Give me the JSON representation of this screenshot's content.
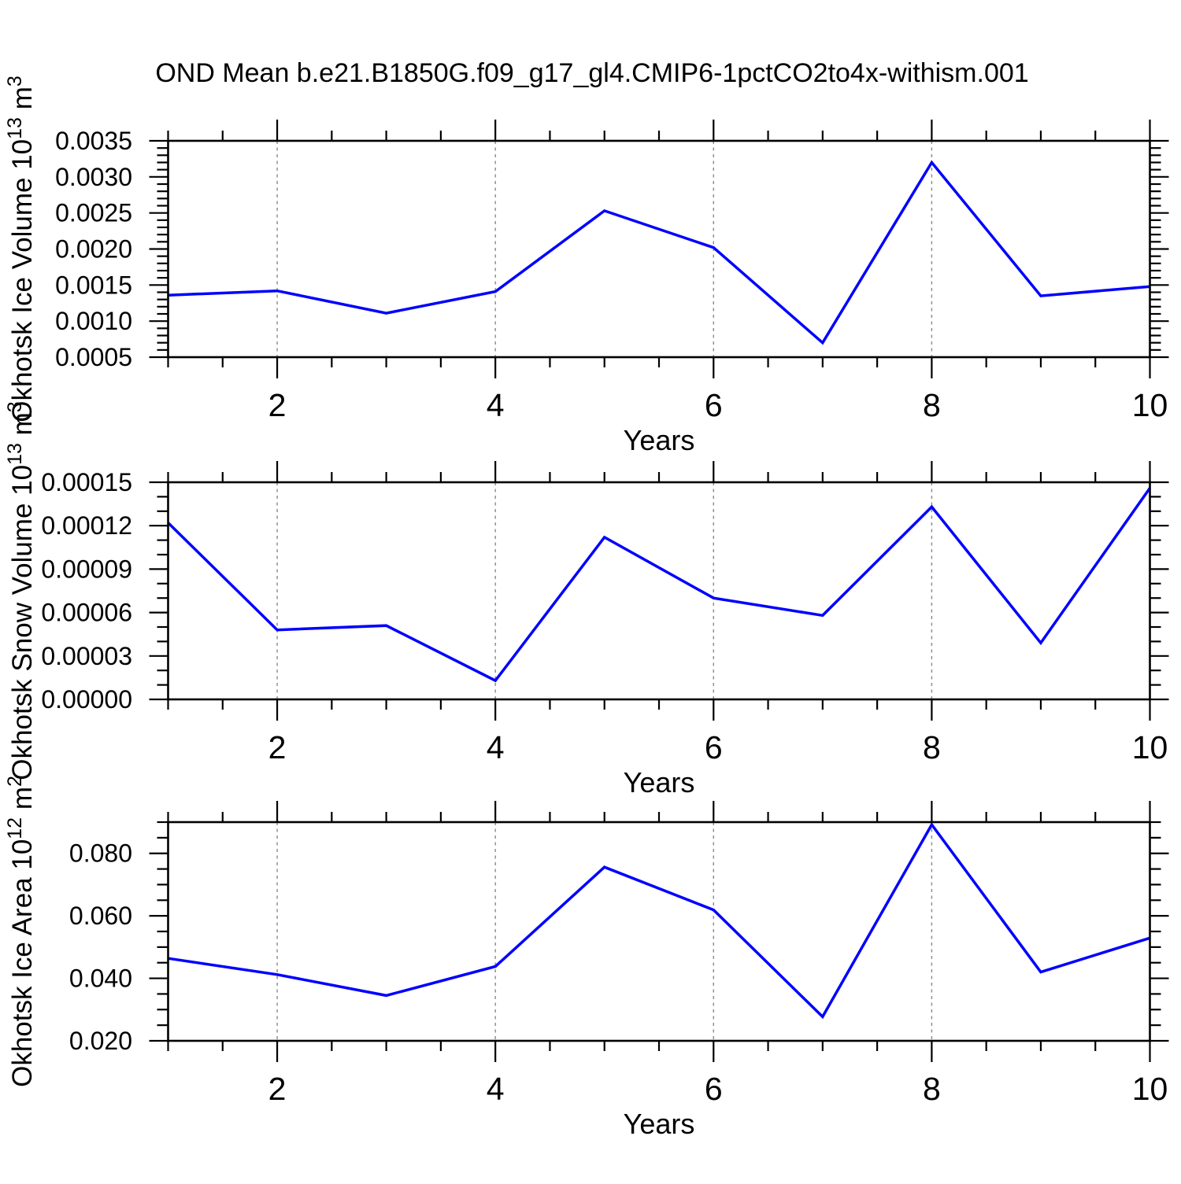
{
  "figure_title": "OND Mean b.e21.B1850G.f09_g17_gl4.CMIP6-1pctCO2to4x-withism.001",
  "colors": {
    "line": "#0000ff",
    "frame": "#000000",
    "grid": "#8a8a8a",
    "text": "#000000"
  },
  "chart_data": [
    {
      "type": "line",
      "ylabel": "Okhotsk Ice Volume 10^13 m^3",
      "ylabel_parts": [
        {
          "t": "Okhotsk Ice Volume 10"
        },
        {
          "t": "13",
          "sup": true
        },
        {
          "t": " m"
        },
        {
          "t": "3",
          "sup": true
        }
      ],
      "xlabel": "Years",
      "x": [
        1,
        2,
        3,
        4,
        5,
        6,
        7,
        8,
        9,
        10
      ],
      "values": [
        0.00136,
        0.00142,
        0.00111,
        0.00141,
        0.00253,
        0.00202,
        0.0007,
        0.0032,
        0.00135,
        0.00148
      ],
      "ylim": [
        0.0005,
        0.0035
      ],
      "ytick_major_step": 0.0005,
      "ytick_minor_step": 0.0001,
      "ytick_decimals": 4,
      "xlim": [
        1,
        10
      ],
      "xtick_major_step": 2,
      "xtick_minor_step": 0.5,
      "grid_x": [
        2,
        4,
        6,
        8
      ],
      "grid": true,
      "legend": null
    },
    {
      "type": "line",
      "ylabel": "Okhotsk Snow Volume 10^13 m^3",
      "ylabel_parts": [
        {
          "t": "Okhotsk Snow Volume 10"
        },
        {
          "t": "13",
          "sup": true
        },
        {
          "t": " m"
        },
        {
          "t": "3",
          "sup": true
        }
      ],
      "xlabel": "Years",
      "x": [
        1,
        2,
        3,
        4,
        5,
        6,
        7,
        8,
        9,
        10
      ],
      "values": [
        0.000122,
        4.8e-05,
        5.1e-05,
        1.3e-05,
        0.000112,
        7e-05,
        5.8e-05,
        0.000133,
        3.9e-05,
        0.000146
      ],
      "ylim": [
        0.0,
        0.00015
      ],
      "ytick_major_step": 3e-05,
      "ytick_minor_step": 1e-05,
      "ytick_decimals": 5,
      "xlim": [
        1,
        10
      ],
      "xtick_major_step": 2,
      "xtick_minor_step": 0.5,
      "grid_x": [
        2,
        4,
        6,
        8
      ],
      "grid": true,
      "legend": null
    },
    {
      "type": "line",
      "ylabel": "Okhotsk Ice Area 10^12 m^2",
      "ylabel_parts": [
        {
          "t": "Okhotsk Ice Area 10"
        },
        {
          "t": "12",
          "sup": true
        },
        {
          "t": " m"
        },
        {
          "t": "2",
          "sup": true
        }
      ],
      "xlabel": "Years",
      "x": [
        1,
        2,
        3,
        4,
        5,
        6,
        7,
        8,
        9,
        10
      ],
      "values": [
        0.0464,
        0.0412,
        0.0345,
        0.0438,
        0.0756,
        0.0619,
        0.0277,
        0.0892,
        0.042,
        0.0529
      ],
      "ylim": [
        0.02,
        0.09
      ],
      "ytick_major_step": 0.02,
      "ytick_minor_step": 0.005,
      "ytick_decimals": 3,
      "xlim": [
        1,
        10
      ],
      "xtick_major_step": 2,
      "xtick_minor_step": 0.5,
      "grid_x": [
        2,
        4,
        6,
        8
      ],
      "grid": true,
      "legend": null
    }
  ]
}
